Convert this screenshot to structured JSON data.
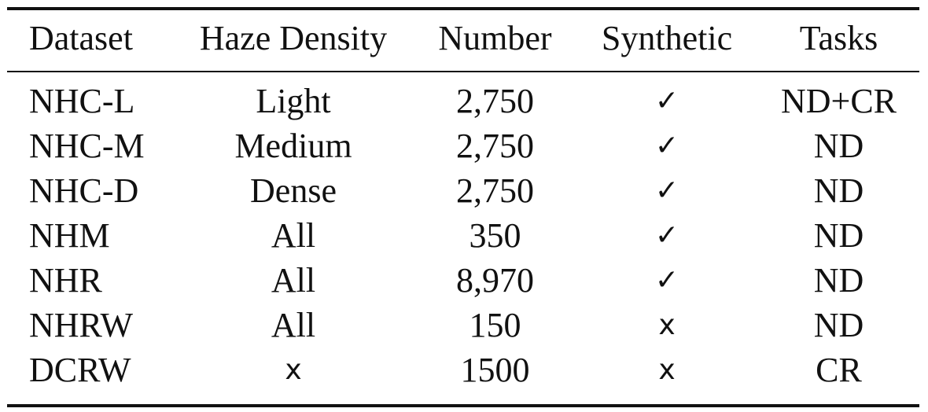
{
  "table": {
    "headers": [
      "Dataset",
      "Haze Density",
      "Number",
      "Synthetic",
      "Tasks"
    ],
    "rows": [
      {
        "dataset": "NHC-L",
        "density": "Light",
        "number": "2,750",
        "synthetic": "✓",
        "tasks": "ND+CR"
      },
      {
        "dataset": "NHC-M",
        "density": "Medium",
        "number": "2,750",
        "synthetic": "✓",
        "tasks": "ND"
      },
      {
        "dataset": "NHC-D",
        "density": "Dense",
        "number": "2,750",
        "synthetic": "✓",
        "tasks": "ND"
      },
      {
        "dataset": "NHM",
        "density": "All",
        "number": "350",
        "synthetic": "✓",
        "tasks": "ND"
      },
      {
        "dataset": "NHR",
        "density": "All",
        "number": "8,970",
        "synthetic": "✓",
        "tasks": "ND"
      },
      {
        "dataset": "NHRW",
        "density": "All",
        "number": "150",
        "synthetic": "x",
        "tasks": "ND"
      },
      {
        "dataset": "DCRW",
        "density": "x",
        "number": "1500",
        "synthetic": "x",
        "tasks": "CR"
      }
    ]
  }
}
